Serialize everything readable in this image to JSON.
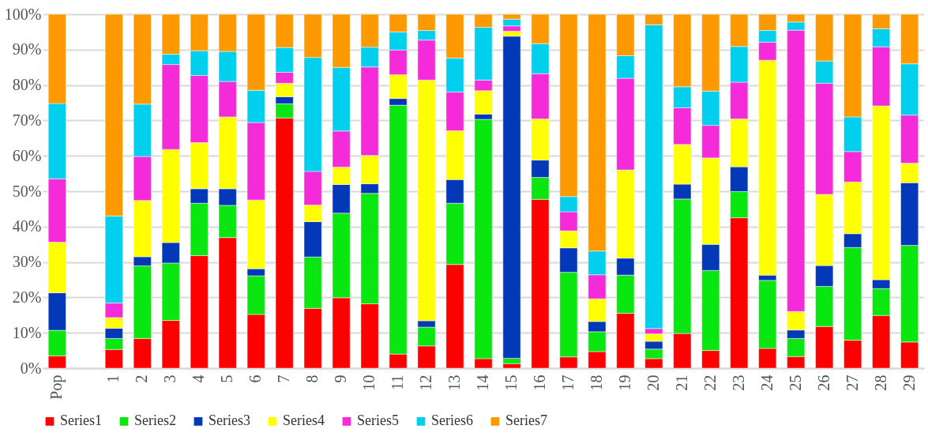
{
  "chart_data": {
    "type": "bar",
    "stacked": true,
    "legend": "bottom",
    "grid": "y",
    "categories": [
      "Pop",
      null,
      "1",
      "2",
      "3",
      "4",
      "5",
      "6",
      "7",
      "8",
      "9",
      "10",
      "11",
      "12",
      "13",
      "14",
      "15",
      "16",
      "17",
      "18",
      "19",
      "20",
      "21",
      "22",
      "23",
      "24",
      "25",
      "26",
      "27",
      "28",
      "29"
    ],
    "ylim": [
      0,
      100
    ],
    "yticks": [
      {
        "value": 0,
        "label": "0%"
      },
      {
        "value": 10,
        "label": "10%"
      },
      {
        "value": 20,
        "label": "20%"
      },
      {
        "value": 30,
        "label": "30%"
      },
      {
        "value": 40,
        "label": "40%"
      },
      {
        "value": 50,
        "label": "50%"
      },
      {
        "value": 60,
        "label": "60%"
      },
      {
        "value": 70,
        "label": "70%"
      },
      {
        "value": 80,
        "label": "80%"
      },
      {
        "value": 90,
        "label": "90%"
      },
      {
        "value": 100,
        "label": "100%"
      }
    ],
    "series": [
      {
        "name": "Series1",
        "color": "#ff0000",
        "values": [
          3.5,
          null,
          5.3,
          8.4,
          13.5,
          31.8,
          36.9,
          15.2,
          70.7,
          16.9,
          19.9,
          18.2,
          4.0,
          6.3,
          29.3,
          2.7,
          1.3,
          47.7,
          3.2,
          4.7,
          15.5,
          2.7,
          9.8,
          5.0,
          42.5,
          5.6,
          3.3,
          11.8,
          7.9,
          14.9,
          7.4
        ]
      },
      {
        "name": "Series2",
        "color": "#0ae60f",
        "values": [
          7.2,
          null,
          3.1,
          20.5,
          16.2,
          14.8,
          9.1,
          10.9,
          4.0,
          14.5,
          23.9,
          31.2,
          70.3,
          5.3,
          17.3,
          67.6,
          1.5,
          6.2,
          23.9,
          5.6,
          10.8,
          2.7,
          38.0,
          22.6,
          7.4,
          19.2,
          5.1,
          11.3,
          26.2,
          7.6,
          27.3
        ]
      },
      {
        "name": "Series3",
        "color": "#0339b9",
        "values": [
          10.6,
          null,
          2.9,
          2.6,
          5.8,
          4.1,
          4.7,
          2.0,
          2.0,
          10.0,
          8.1,
          2.7,
          1.9,
          1.8,
          6.7,
          1.5,
          91.0,
          4.9,
          6.9,
          2.9,
          4.8,
          2.2,
          4.2,
          7.4,
          7.0,
          1.5,
          2.4,
          5.9,
          3.9,
          2.5,
          17.7
        ]
      },
      {
        "name": "Series4",
        "color": "#ffff00",
        "values": [
          14.3,
          null,
          3.0,
          15.9,
          26.3,
          13.0,
          20.3,
          19.4,
          3.8,
          4.7,
          4.9,
          8.0,
          6.7,
          68.0,
          13.8,
          6.6,
          1.4,
          11.6,
          4.8,
          6.4,
          24.9,
          2.1,
          11.2,
          24.4,
          13.5,
          60.7,
          5.2,
          20.1,
          14.6,
          49.1,
          5.5
        ]
      },
      {
        "name": "Series5",
        "color": "#f52ad8",
        "values": [
          17.9,
          null,
          4.1,
          12.4,
          24.0,
          19.0,
          10.0,
          21.9,
          3.1,
          9.5,
          10.2,
          25.0,
          7.0,
          11.3,
          10.9,
          3.0,
          1.5,
          12.8,
          5.4,
          6.8,
          25.9,
          1.5,
          10.4,
          9.2,
          10.4,
          5.1,
          79.5,
          31.4,
          8.6,
          16.7,
          13.6
        ]
      },
      {
        "name": "Series6",
        "color": "#00d0ee",
        "values": [
          21.3,
          null,
          24.6,
          14.8,
          2.9,
          7.0,
          8.5,
          9.1,
          7.0,
          32.2,
          18.0,
          5.6,
          5.1,
          2.7,
          9.6,
          14.9,
          1.9,
          8.5,
          4.3,
          6.7,
          6.4,
          85.8,
          5.9,
          9.7,
          10.1,
          3.3,
          2.3,
          6.3,
          9.8,
          5.1,
          14.5
        ]
      },
      {
        "name": "Series7",
        "color": "#ff9900",
        "values": [
          25.2,
          null,
          57.0,
          25.4,
          11.3,
          10.3,
          10.5,
          21.5,
          9.4,
          12.2,
          15.0,
          9.3,
          5.0,
          4.6,
          12.4,
          3.7,
          1.4,
          8.3,
          51.5,
          66.9,
          11.7,
          3.0,
          20.5,
          21.7,
          9.1,
          4.6,
          2.2,
          13.2,
          29.0,
          4.1,
          14.0
        ]
      }
    ]
  }
}
